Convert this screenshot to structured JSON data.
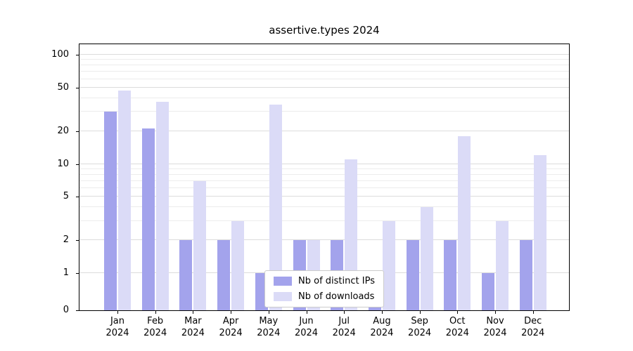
{
  "chart_data": {
    "type": "bar",
    "title": "assertive.types 2024",
    "scale": "symlog",
    "ylim": [
      0,
      100
    ],
    "grid": true,
    "legend_position": "lower center",
    "categories": [
      "Jan 2024",
      "Feb 2024",
      "Mar 2024",
      "Apr 2024",
      "May 2024",
      "Jun 2024",
      "Jul 2024",
      "Aug 2024",
      "Sep 2024",
      "Oct 2024",
      "Nov 2024",
      "Dec 2024"
    ],
    "series": [
      {
        "name": "Nb of distinct IPs",
        "color": "#a3a3ec",
        "values": [
          30,
          21,
          2,
          2,
          1,
          2,
          2,
          1,
          2,
          2,
          1,
          2
        ]
      },
      {
        "name": "Nb of downloads",
        "color": "#dbdbf7",
        "values": [
          47,
          37,
          7,
          3,
          35,
          2,
          11,
          3,
          4,
          18,
          3,
          12
        ]
      }
    ],
    "y_ticks": [
      0,
      1,
      2,
      5,
      10,
      20,
      50,
      100
    ],
    "y_minor_ticks": [
      3,
      4,
      6,
      7,
      8,
      9,
      30,
      40,
      60,
      70,
      80,
      90
    ]
  },
  "colors": {
    "background": "#ffffff",
    "axis": "#000000",
    "grid_major": "#dcdcdc",
    "grid_minor": "#ececec",
    "legend_border": "#cccccc",
    "text": "#000000"
  }
}
